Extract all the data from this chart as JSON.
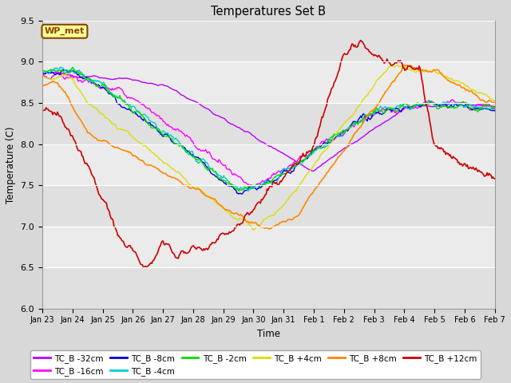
{
  "title": "Temperatures Set B",
  "xlabel": "Time",
  "ylabel": "Temperature (C)",
  "ylim": [
    6.0,
    9.5
  ],
  "yticks": [
    6.0,
    6.5,
    7.0,
    7.5,
    8.0,
    8.5,
    9.0,
    9.5
  ],
  "xtick_labels": [
    "Jan 23",
    "Jan 24",
    "Jan 25",
    "Jan 26",
    "Jan 27",
    "Jan 28",
    "Jan 29",
    "Jan 30",
    "Jan 31",
    "Feb 1",
    "Feb 2",
    "Feb 3",
    "Feb 4",
    "Feb 5",
    "Feb 6",
    "Feb 7"
  ],
  "n_points": 480,
  "series_colors": {
    "TC_B -32cm": "#bb00ff",
    "TC_B -16cm": "#ff00ff",
    "TC_B -8cm": "#0000dd",
    "TC_B -4cm": "#00cccc",
    "TC_B -2cm": "#00dd00",
    "TC_B +4cm": "#dddd00",
    "TC_B +8cm": "#ff8800",
    "TC_B +12cm": "#cc0000"
  },
  "wp_met_box_facecolor": "#ffff99",
  "wp_met_box_edgecolor": "#884400",
  "wp_met_text_color": "#884400",
  "background_color": "#d8d8d8",
  "plot_bg_color": "#e8e8e8",
  "grid_color": "#ffffff",
  "figsize": [
    6.4,
    4.8
  ],
  "dpi": 100
}
